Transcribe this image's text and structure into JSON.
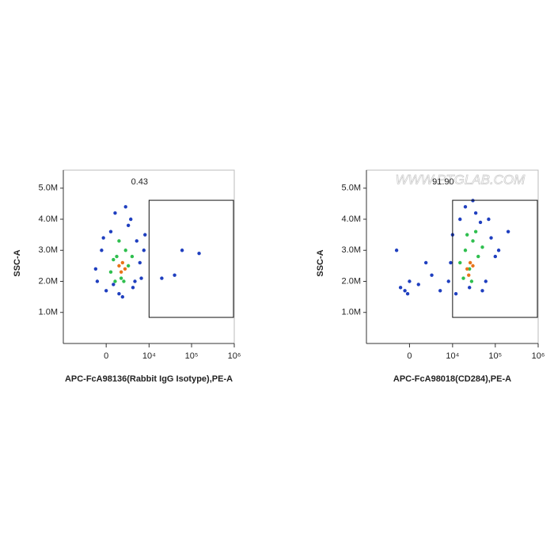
{
  "chart_data": [
    {
      "type": "scatter",
      "xlabel": "APC-FcA98136(Rabbit IgG Isotype),PE-A",
      "ylabel": "SSC-A",
      "xscale": "logicle",
      "xlim": [
        -10000,
        1000000
      ],
      "ylim": [
        0,
        5580000
      ],
      "xticks": [
        0,
        {
          "value": 10000,
          "label": "10⁴"
        },
        {
          "value": 100000,
          "label": "10⁵"
        },
        {
          "value": 1000000,
          "label": "10⁶"
        }
      ],
      "yticks": [
        {
          "value": 1000000,
          "label": "1.0M"
        },
        {
          "value": 2000000,
          "label": "2.0M"
        },
        {
          "value": 3000000,
          "label": "3.0M"
        },
        {
          "value": 4000000,
          "label": "4.0M"
        },
        {
          "value": 5000000,
          "label": "5.0M"
        }
      ],
      "series": [
        {
          "color": "#1f3fbf",
          "x": [
            -1000,
            -500,
            0,
            500,
            1000,
            1500,
            2500,
            3000,
            4000,
            5000,
            6000,
            7500,
            -1200,
            800,
            3500,
            6500,
            2000,
            -300,
            4500,
            8000,
            60000,
            150000,
            40000,
            20000
          ],
          "y": [
            2000000,
            3000000,
            1700000,
            3600000,
            4200000,
            1600000,
            4400000,
            3800000,
            1800000,
            3300000,
            2600000,
            3000000,
            2400000,
            1900000,
            4000000,
            2100000,
            1500000,
            3400000,
            2000000,
            3500000,
            3000000,
            2900000,
            2200000,
            2100000
          ]
        },
        {
          "color": "#2fbf4f",
          "x": [
            500,
            1200,
            1800,
            2500,
            3000,
            1500,
            800,
            3800,
            2200,
            1000
          ],
          "y": [
            2300000,
            2800000,
            2100000,
            3000000,
            2500000,
            3300000,
            2700000,
            2800000,
            2000000,
            2000000
          ]
        },
        {
          "color": "#e8741a",
          "x": [
            1500,
            2000,
            1800,
            2400
          ],
          "y": [
            2500000,
            2600000,
            2300000,
            2400000
          ]
        }
      ],
      "gate": {
        "x": [
          10000,
          1000000
        ],
        "y": [
          840000,
          4610000
        ],
        "label": "0.43"
      }
    },
    {
      "type": "scatter",
      "xlabel": "APC-FcA98018(CD284),PE-A",
      "ylabel": "SSC-A",
      "watermark": "WWW.PTGLAB.COM",
      "xscale": "logicle",
      "xlim": [
        -10000,
        1000000
      ],
      "ylim": [
        0,
        5580000
      ],
      "xticks": [
        0,
        {
          "value": 10000,
          "label": "10⁴"
        },
        {
          "value": 100000,
          "label": "10⁵"
        },
        {
          "value": 1000000,
          "label": "10⁶"
        }
      ],
      "yticks": [
        {
          "value": 1000000,
          "label": "1.0M"
        },
        {
          "value": 2000000,
          "label": "2.0M"
        },
        {
          "value": 3000000,
          "label": "3.0M"
        },
        {
          "value": 4000000,
          "label": "4.0M"
        },
        {
          "value": 5000000,
          "label": "5.0M"
        }
      ],
      "series": [
        {
          "color": "#1f3fbf",
          "x": [
            8000,
            10000,
            12000,
            15000,
            20000,
            25000,
            35000,
            45000,
            60000,
            80000,
            100000,
            120000,
            9000,
            50000,
            30000,
            70000,
            -1000,
            0,
            -500,
            1000,
            3000,
            -1500,
            2000,
            5000,
            -200,
            200000
          ],
          "y": [
            2000000,
            3500000,
            1600000,
            4000000,
            4400000,
            1800000,
            4200000,
            3900000,
            2000000,
            3400000,
            2800000,
            3000000,
            2600000,
            1700000,
            4600000,
            4000000,
            1800000,
            2000000,
            1700000,
            1900000,
            2200000,
            3000000,
            2600000,
            1700000,
            1600000,
            3600000
          ]
        },
        {
          "color": "#2fbf4f",
          "x": [
            15000,
            20000,
            25000,
            30000,
            40000,
            18000,
            35000,
            50000,
            22000,
            28000
          ],
          "y": [
            2600000,
            3000000,
            2400000,
            3300000,
            2800000,
            2100000,
            3600000,
            3100000,
            3500000,
            2000000
          ]
        },
        {
          "color": "#e8741a",
          "x": [
            22000,
            26000,
            30000,
            24000
          ],
          "y": [
            2400000,
            2600000,
            2500000,
            2200000
          ]
        }
      ],
      "gate": {
        "x": [
          10000,
          1000000
        ],
        "y": [
          840000,
          4610000
        ],
        "label": "91.90"
      }
    }
  ]
}
